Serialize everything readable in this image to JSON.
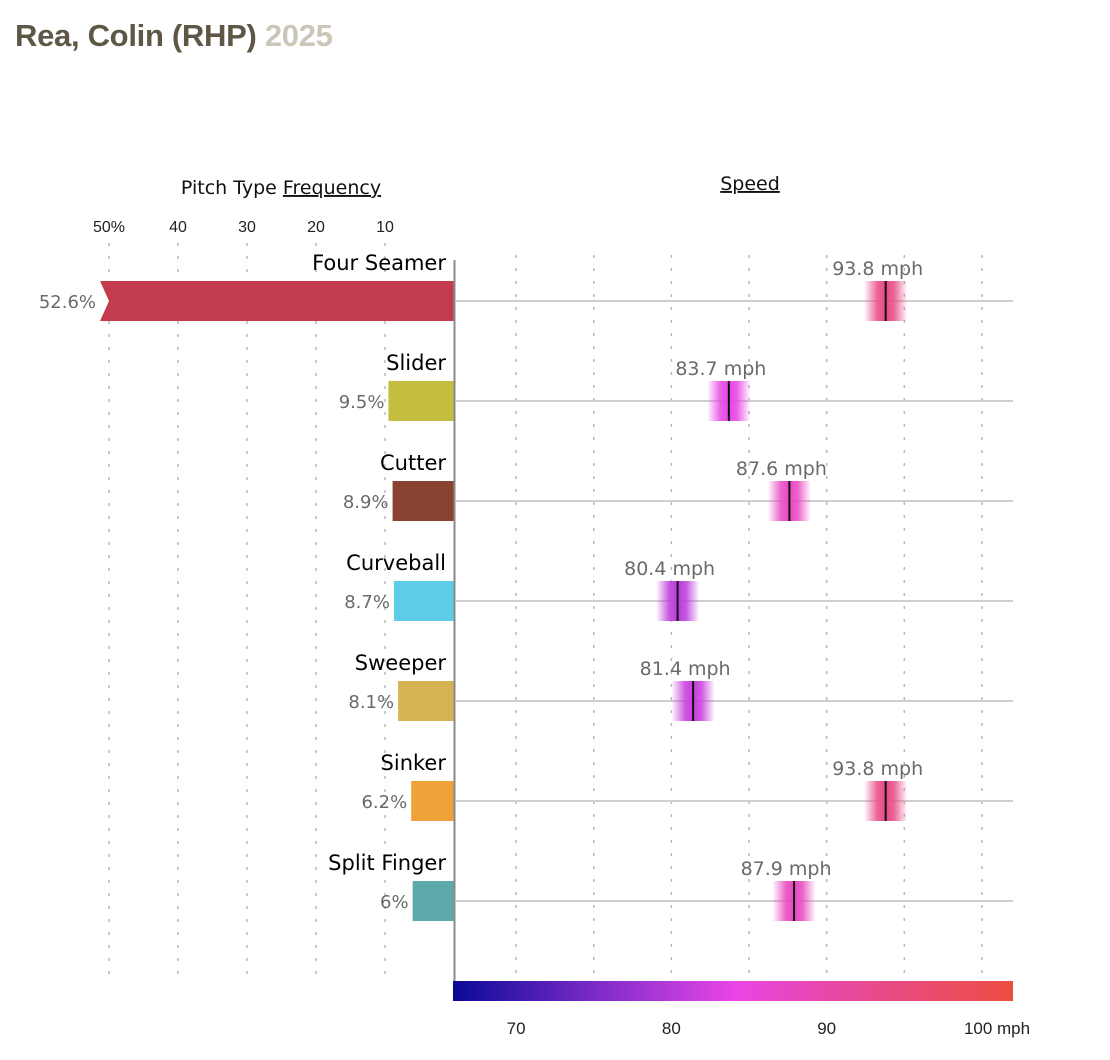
{
  "header": {
    "player": "Rea, Colin (RHP)",
    "season": "2025"
  },
  "chart_data": {
    "type": "bar",
    "title": "Rea, Colin (RHP) 2025",
    "panels": {
      "frequency": {
        "title_prefix": "Pitch Type ",
        "title_link": "Frequency",
        "ticks": [
          50,
          40,
          30,
          20,
          10
        ],
        "tick_labels": [
          "50%",
          "40",
          "30",
          "20",
          "10"
        ],
        "xlim": [
          0,
          50
        ],
        "grid": true
      },
      "speed": {
        "title_link": "Speed",
        "gridlines": [
          70,
          75,
          80,
          85,
          90,
          95,
          100
        ],
        "xlim": [
          66,
          102
        ],
        "grid": true,
        "colorbar": {
          "ticks": [
            70,
            80,
            90,
            100
          ],
          "tick_labels": [
            "70",
            "80",
            "90",
            "100 mph"
          ],
          "range": [
            66,
            102
          ],
          "stops": [
            "#0a0a96",
            "#7a2ac8",
            "#e845e6",
            "#e84a8e",
            "#ec4d40"
          ]
        }
      }
    },
    "categories": [
      "Four Seamer",
      "Slider",
      "Cutter",
      "Curveball",
      "Sweeper",
      "Sinker",
      "Split Finger"
    ],
    "series": [
      {
        "name": "Frequency",
        "unit": "%",
        "values": [
          52.6,
          9.5,
          8.9,
          8.7,
          8.1,
          6.2,
          6
        ],
        "labels": [
          "52.6%",
          "9.5%",
          "8.9%",
          "8.7%",
          "8.1%",
          "6.2%",
          "6%"
        ],
        "colors": [
          "#c23c4e",
          "#c3bd40",
          "#8a4330",
          "#5ecde8",
          "#d6b452",
          "#f0a238",
          "#5ea9aa"
        ],
        "truncated": [
          true,
          false,
          false,
          false,
          false,
          false,
          false
        ]
      },
      {
        "name": "Speed",
        "unit": "mph",
        "values": [
          93.8,
          83.7,
          87.6,
          80.4,
          81.4,
          93.8,
          87.9
        ],
        "labels": [
          "93.8 mph",
          "83.7 mph",
          "87.6 mph",
          "80.4 mph",
          "81.4 mph",
          "93.8 mph",
          "87.9 mph"
        ]
      }
    ]
  }
}
